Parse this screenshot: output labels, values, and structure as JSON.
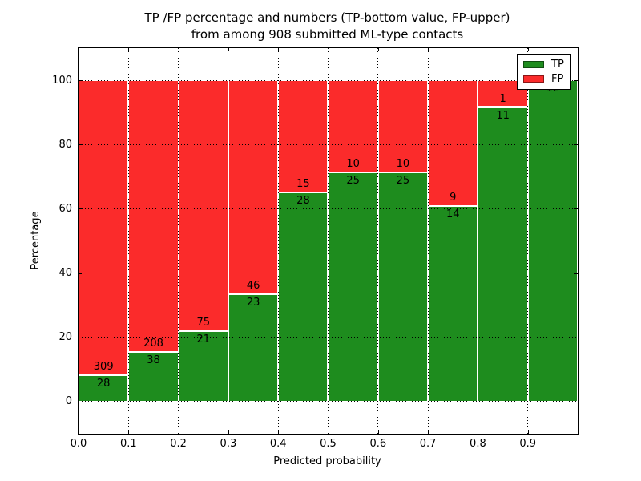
{
  "chart_data": {
    "type": "bar",
    "stacked": true,
    "normalized": "each bin scaled to 100%",
    "title": "TP /FP percentage and numbers (TP-bottom value, FP-upper)\nfrom among 908 submitted ML-type contacts",
    "title_line1": "TP /FP percentage and numbers (TP-bottom value, FP-upper)",
    "title_line2": "from among 908 submitted ML-type contacts",
    "xlabel": "Predicted probability",
    "ylabel": "Percentage",
    "total_submitted": 908,
    "xlim": [
      0.0,
      1.0
    ],
    "ylim": [
      -10,
      110
    ],
    "xticks": [
      "0.0",
      "0.1",
      "0.2",
      "0.3",
      "0.4",
      "0.5",
      "0.6",
      "0.7",
      "0.8",
      "0.9"
    ],
    "yticks": [
      0,
      20,
      40,
      60,
      80,
      100
    ],
    "grid": true,
    "grid_style": "dotted-black",
    "categories": [
      "0.0-0.1",
      "0.1-0.2",
      "0.2-0.3",
      "0.3-0.4",
      "0.4-0.5",
      "0.5-0.6",
      "0.6-0.7",
      "0.7-0.8",
      "0.8-0.9",
      "0.9-1.0"
    ],
    "series": [
      {
        "name": "TP",
        "color": "#1e8c1e",
        "values": [
          28,
          38,
          21,
          23,
          28,
          25,
          25,
          14,
          11,
          12
        ]
      },
      {
        "name": "FP",
        "color": "#fb2b2b",
        "values": [
          309,
          208,
          75,
          46,
          15,
          10,
          10,
          9,
          1,
          0
        ]
      }
    ],
    "legend": {
      "position": "upper-right",
      "entries": [
        {
          "label": "TP",
          "color": "#1e8c1e"
        },
        {
          "label": "FP",
          "color": "#fb2b2b"
        }
      ]
    }
  }
}
